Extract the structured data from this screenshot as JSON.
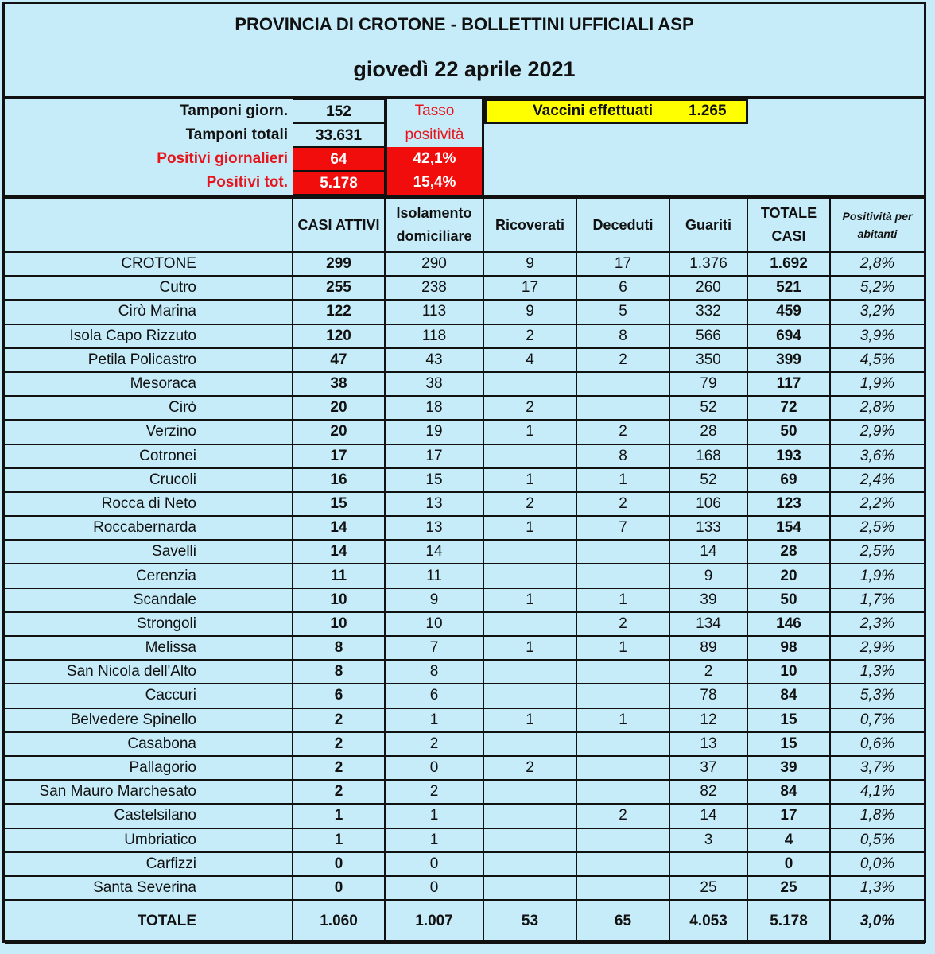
{
  "header": {
    "title": "PROVINCIA DI CROTONE - BOLLETTINI UFFICIALI ASP",
    "date": "giovedì 22 aprile 2021"
  },
  "summary": {
    "tamponi_giorn_label": "Tamponi giorn.",
    "tamponi_giorn": "152",
    "tamponi_totali_label": "Tamponi totali",
    "tamponi_totali": "33.631",
    "positivi_giornalieri_label": "Positivi giornalieri",
    "positivi_giornalieri": "64",
    "positivi_tot_label": "Positivi tot.",
    "positivi_tot": "5.178",
    "tasso_label_1": "Tasso",
    "tasso_label_2": "positività",
    "tasso_giornaliero": "42,1%",
    "tasso_totale": "15,4%",
    "vaccini_label": "Vaccini effettuati",
    "vaccini": "1.265"
  },
  "colors": {
    "background": "#c6ecf9",
    "alert_red": "#f20d0d",
    "highlight_yellow": "#ffff00"
  },
  "table": {
    "columns": [
      "",
      "CASI ATTIVI",
      "Isolamento domiciliare",
      "Ricoverati",
      "Deceduti",
      "Guariti",
      "TOTALE CASI",
      "Positività per abitanti"
    ],
    "rows": [
      [
        "CROTONE",
        "299",
        "290",
        "9",
        "17",
        "1.376",
        "1.692",
        "2,8%"
      ],
      [
        "Cutro",
        "255",
        "238",
        "17",
        "6",
        "260",
        "521",
        "5,2%"
      ],
      [
        "Cirò Marina",
        "122",
        "113",
        "9",
        "5",
        "332",
        "459",
        "3,2%"
      ],
      [
        "Isola Capo Rizzuto",
        "120",
        "118",
        "2",
        "8",
        "566",
        "694",
        "3,9%"
      ],
      [
        "Petila Policastro",
        "47",
        "43",
        "4",
        "2",
        "350",
        "399",
        "4,5%"
      ],
      [
        "Mesoraca",
        "38",
        "38",
        "",
        "",
        "79",
        "117",
        "1,9%"
      ],
      [
        "Cirò",
        "20",
        "18",
        "2",
        "",
        "52",
        "72",
        "2,8%"
      ],
      [
        "Verzino",
        "20",
        "19",
        "1",
        "2",
        "28",
        "50",
        "2,9%"
      ],
      [
        "Cotronei",
        "17",
        "17",
        "",
        "8",
        "168",
        "193",
        "3,6%"
      ],
      [
        "Crucoli",
        "16",
        "15",
        "1",
        "1",
        "52",
        "69",
        "2,4%"
      ],
      [
        "Rocca di Neto",
        "15",
        "13",
        "2",
        "2",
        "106",
        "123",
        "2,2%"
      ],
      [
        "Roccabernarda",
        "14",
        "13",
        "1",
        "7",
        "133",
        "154",
        "2,5%"
      ],
      [
        "Savelli",
        "14",
        "14",
        "",
        "",
        "14",
        "28",
        "2,5%"
      ],
      [
        "Cerenzia",
        "11",
        "11",
        "",
        "",
        "9",
        "20",
        "1,9%"
      ],
      [
        "Scandale",
        "10",
        "9",
        "1",
        "1",
        "39",
        "50",
        "1,7%"
      ],
      [
        "Strongoli",
        "10",
        "10",
        "",
        "2",
        "134",
        "146",
        "2,3%"
      ],
      [
        "Melissa",
        "8",
        "7",
        "1",
        "1",
        "89",
        "98",
        "2,9%"
      ],
      [
        "San Nicola dell'Alto",
        "8",
        "8",
        "",
        "",
        "2",
        "10",
        "1,3%"
      ],
      [
        "Caccuri",
        "6",
        "6",
        "",
        "",
        "78",
        "84",
        "5,3%"
      ],
      [
        "Belvedere Spinello",
        "2",
        "1",
        "1",
        "1",
        "12",
        "15",
        "0,7%"
      ],
      [
        "Casabona",
        "2",
        "2",
        "",
        "",
        "13",
        "15",
        "0,6%"
      ],
      [
        "Pallagorio",
        "2",
        "0",
        "2",
        "",
        "37",
        "39",
        "3,7%"
      ],
      [
        "San Mauro Marchesato",
        "2",
        "2",
        "",
        "",
        "82",
        "84",
        "4,1%"
      ],
      [
        "Castelsilano",
        "1",
        "1",
        "",
        "2",
        "14",
        "17",
        "1,8%"
      ],
      [
        "Umbriatico",
        "1",
        "1",
        "",
        "",
        "3",
        "4",
        "0,5%"
      ],
      [
        "Carfizzi",
        "0",
        "0",
        "",
        "",
        "",
        "0",
        "0,0%"
      ],
      [
        "Santa Severina",
        "0",
        "0",
        "",
        "",
        "25",
        "25",
        "1,3%"
      ]
    ],
    "total": [
      "TOTALE",
      "1.060",
      "1.007",
      "53",
      "65",
      "4.053",
      "5.178",
      "3,0%"
    ]
  }
}
